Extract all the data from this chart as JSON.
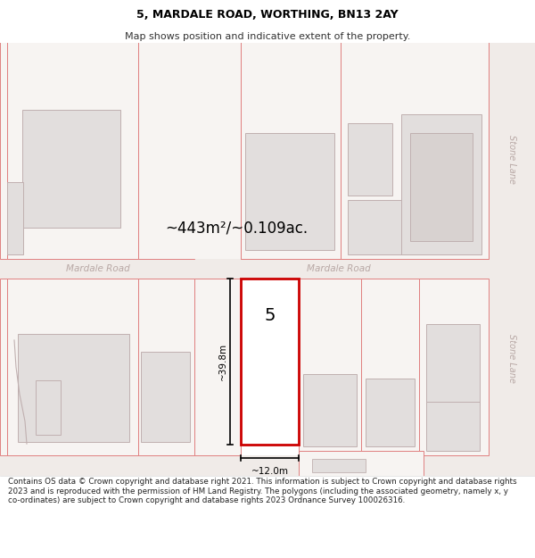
{
  "title": "5, MARDALE ROAD, WORTHING, BN13 2AY",
  "subtitle": "Map shows position and indicative extent of the property.",
  "footer": "Contains OS data © Crown copyright and database right 2021. This information is subject to Crown copyright and database rights 2023 and is reproduced with the permission of HM Land Registry. The polygons (including the associated geometry, namely x, y co-ordinates) are subject to Crown copyright and database rights 2023 Ordnance Survey 100026316.",
  "area_label": "~443m²/~0.109ac.",
  "road_label_left": "Mardale Road",
  "road_label_right": "Mardale Road",
  "lane_label_top": "Stone Lane",
  "lane_label_bot": "Stone Lane",
  "dim_height": "~39.8m",
  "dim_width": "~12.0m",
  "property_number": "5",
  "map_bg": "#ffffff",
  "road_bg": "#f0ebe8",
  "plot_bg": "#f7f4f2",
  "plot_line": "#e08080",
  "highlight_color": "#cc0000",
  "building_fill": "#e2dedd",
  "building_line": "#c0b0b0",
  "text_road_color": "#b8a8a5",
  "lane_bg": "#f0ebe8"
}
